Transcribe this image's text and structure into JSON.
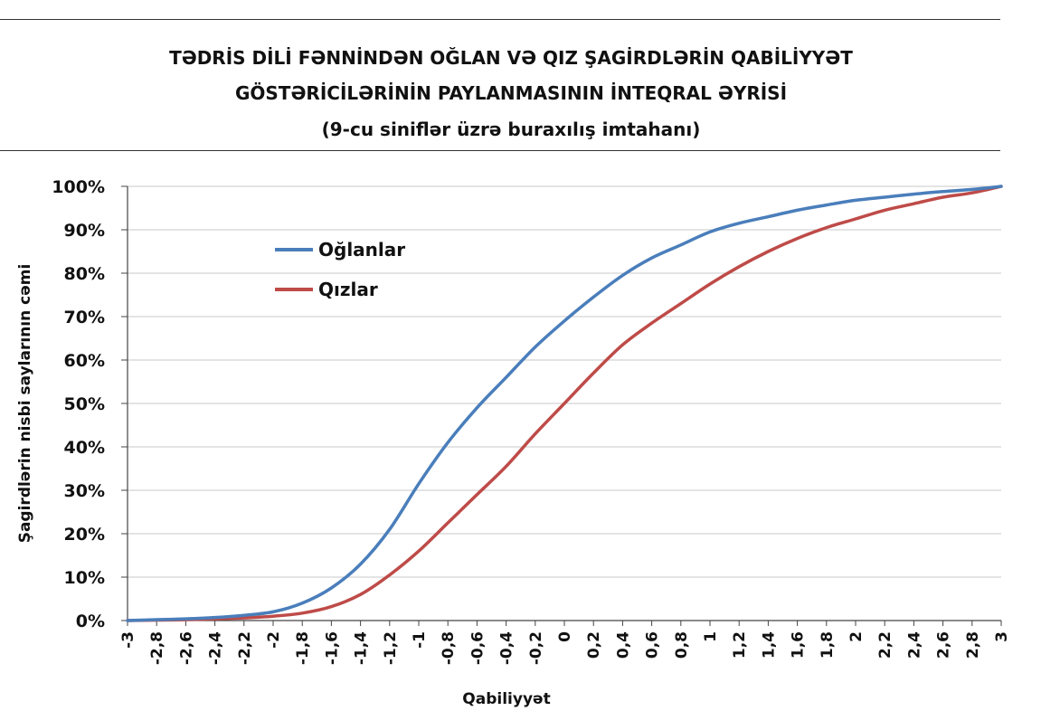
{
  "chart_data": {
    "type": "line",
    "title_lines": [
      "TƏDRİS DİLİ FƏNNİNDƏN OĞLAN VƏ QIZ ŞAGİRDLƏRİN QABİLİYYƏT",
      "GÖSTƏRİCİLƏRİNİN PAYLANMASININ İNTEQRAL ƏYRİSİ",
      "(9-cu siniflər üzrə buraxılış imtahanı)"
    ],
    "xlabel": "Qabiliyyət",
    "ylabel": "Şagirdlərin nisbi  saylarının cəmi",
    "xlim": [
      -3,
      3
    ],
    "ylim": [
      0,
      100
    ],
    "x_ticks": [
      -3,
      -2.8,
      -2.6,
      -2.4,
      -2.2,
      -2,
      -1.8,
      -1.6,
      -1.4,
      -1.2,
      -1,
      -0.8,
      -0.6,
      -0.4,
      -0.2,
      0,
      0.2,
      0.4,
      0.6,
      0.8,
      1,
      1.2,
      1.4,
      1.6,
      1.8,
      2,
      2.2,
      2.4,
      2.6,
      2.8,
      3
    ],
    "x_tick_labels": [
      "-3",
      "-2,8",
      "-2,6",
      "-2,4",
      "-2,2",
      "-2",
      "-1,8",
      "-1,6",
      "-1,4",
      "-1,2",
      "-1",
      "-0,8",
      "-0,6",
      "-0,4",
      "-0,2",
      "0",
      "0,2",
      "0,4",
      "0,6",
      "0,8",
      "1",
      "1,2",
      "1,4",
      "1,6",
      "1,8",
      "2",
      "2,2",
      "2,4",
      "2,6",
      "2,8",
      "3"
    ],
    "y_ticks": [
      0,
      10,
      20,
      30,
      40,
      50,
      60,
      70,
      80,
      90,
      100
    ],
    "y_tick_labels": [
      "0%",
      "10%",
      "20%",
      "30%",
      "40%",
      "50%",
      "60%",
      "70%",
      "80%",
      "90%",
      "100%"
    ],
    "grid": true,
    "legend_position": "upper-left",
    "x": [
      -3,
      -2.8,
      -2.6,
      -2.4,
      -2.2,
      -2,
      -1.8,
      -1.6,
      -1.4,
      -1.2,
      -1,
      -0.8,
      -0.6,
      -0.4,
      -0.2,
      0,
      0.2,
      0.4,
      0.6,
      0.8,
      1,
      1.2,
      1.4,
      1.6,
      1.8,
      2,
      2.2,
      2.4,
      2.6,
      2.8,
      3
    ],
    "series": [
      {
        "name": "Oğlanlar",
        "color": "#4a7ebb",
        "values": [
          0,
          0.2,
          0.4,
          0.7,
          1.2,
          2,
          4,
          7.5,
          13,
          21,
          31.5,
          41,
          49,
          56,
          63,
          69,
          74.5,
          79.5,
          83.5,
          86.5,
          89.5,
          91.5,
          93,
          94.5,
          95.7,
          96.8,
          97.5,
          98.2,
          98.8,
          99.3,
          100
        ]
      },
      {
        "name": "Qızlar",
        "color": "#be4b48",
        "values": [
          0,
          0.1,
          0.2,
          0.4,
          0.6,
          1,
          1.7,
          3.2,
          6,
          10.5,
          16,
          22.5,
          29,
          35.5,
          43,
          50,
          57,
          63.5,
          68.5,
          73,
          77.5,
          81.5,
          85,
          88,
          90.5,
          92.5,
          94.5,
          96,
          97.5,
          98.5,
          100
        ]
      }
    ]
  }
}
